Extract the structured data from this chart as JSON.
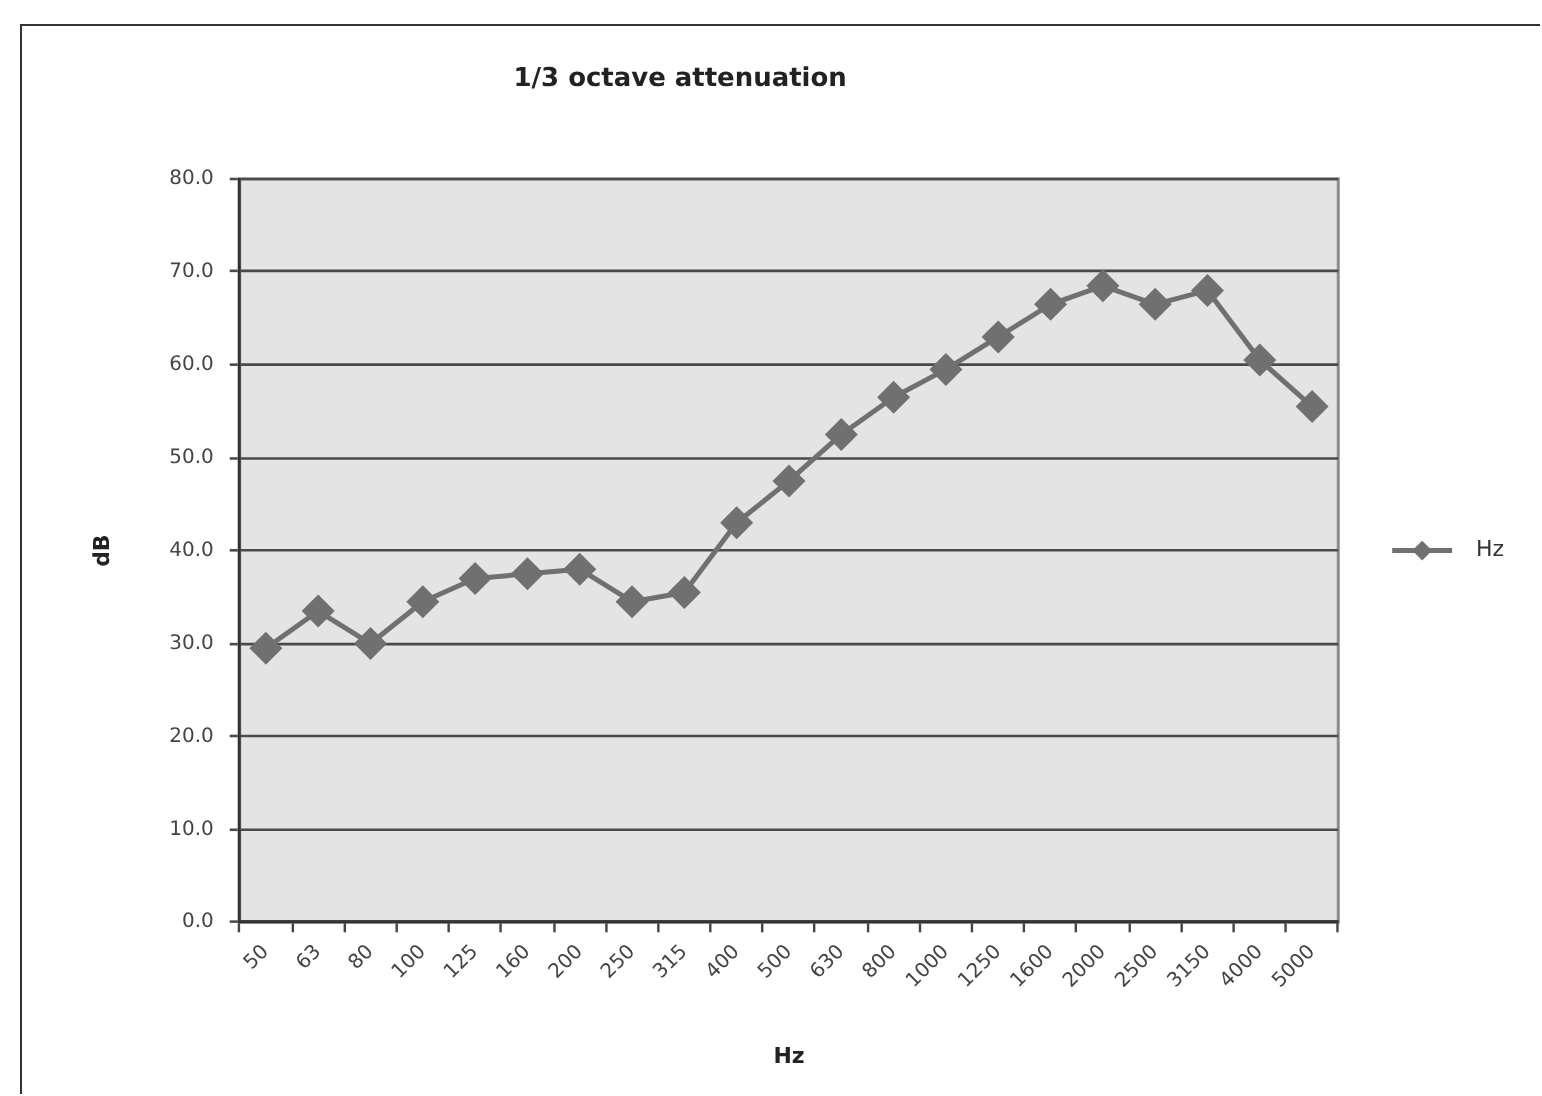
{
  "chart_data": {
    "type": "line",
    "title": "1/3 octave attenuation",
    "xlabel": "Hz",
    "ylabel": "dB",
    "categories": [
      "50",
      "63",
      "80",
      "100",
      "125",
      "160",
      "200",
      "250",
      "315",
      "400",
      "500",
      "630",
      "800",
      "1000",
      "1250",
      "1600",
      "2000",
      "2500",
      "3150",
      "4000",
      "5000"
    ],
    "series": [
      {
        "name": "Hz",
        "color": "#707070",
        "values": [
          29.5,
          33.5,
          30,
          34.5,
          37,
          37.5,
          38,
          34.5,
          35.5,
          43,
          47.5,
          52.5,
          56.5,
          59.5,
          63,
          66.5,
          68.5,
          66.5,
          68,
          60.5,
          55.5
        ]
      }
    ],
    "ylim": [
      0,
      80
    ],
    "yticks": [
      {
        "value": 0,
        "label": "0.0"
      },
      {
        "value": 10,
        "label": "10.0"
      },
      {
        "value": 20,
        "label": "20.0"
      },
      {
        "value": 30,
        "label": "30.0"
      },
      {
        "value": 40,
        "label": "40.0"
      },
      {
        "value": 50,
        "label": "50.0"
      },
      {
        "value": 60,
        "label": "60.0"
      },
      {
        "value": 70,
        "label": "70.0"
      },
      {
        "value": 80,
        "label": "80.0"
      }
    ],
    "grid": "y",
    "legend": "right",
    "marker": "diamond",
    "line_style": "solid"
  }
}
